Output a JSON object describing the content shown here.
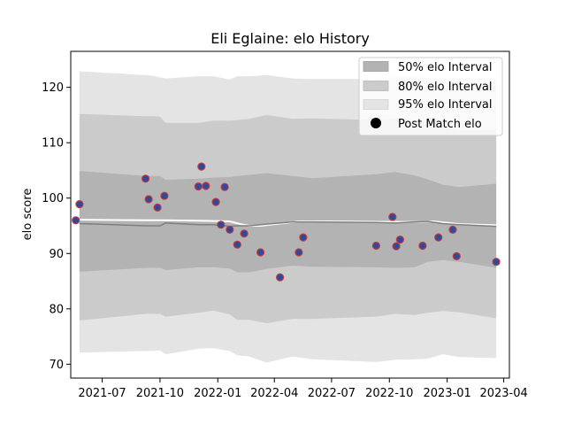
{
  "chart_data": {
    "type": "line",
    "title": "Eli Eglaine: elo History",
    "xlabel": "",
    "ylabel": "elo score",
    "x_axis": {
      "type": "date",
      "range": [
        "2021-05-12",
        "2023-04-10"
      ],
      "ticks": [
        "2021-07-01",
        "2021-10-01",
        "2022-01-01",
        "2022-04-01",
        "2022-07-01",
        "2022-10-01",
        "2023-01-01",
        "2023-04-01"
      ],
      "tick_labels": [
        "2021-07",
        "2021-10",
        "2022-01",
        "2022-04",
        "2022-07",
        "2022-10",
        "2023-01",
        "2023-04"
      ]
    },
    "y_axis": {
      "range": [
        67.5,
        126.5
      ],
      "ticks": [
        70,
        80,
        90,
        100,
        110,
        120
      ],
      "tick_labels": [
        "70",
        "80",
        "90",
        "100",
        "110",
        "120"
      ]
    },
    "grid": false,
    "legend_position": "top-right",
    "legend": [
      {
        "label": "50% elo Interval",
        "color": "#b3b3b3"
      },
      {
        "label": "80% elo Interval",
        "color": "#cbcbcb"
      },
      {
        "label": "95% elo Interval",
        "color": "#e4e4e4"
      },
      {
        "label": "Post Match elo",
        "color": "#000000"
      }
    ],
    "colors": {
      "band50": "#b3b3b3",
      "band80": "#cbcbcb",
      "band95": "#e4e4e4",
      "mean_line": "#7f7f7f",
      "post_line": "#ffffff",
      "point_fill": "#2e4a9e",
      "point_edge": "#c43a3a"
    },
    "mean_series": {
      "x": [
        "2021-05-26",
        "2021-09-08",
        "2021-09-20",
        "2021-10-01",
        "2021-10-10",
        "2021-12-01",
        "2021-12-25",
        "2022-01-20",
        "2022-02-01",
        "2022-02-20",
        "2022-03-20",
        "2022-04-30",
        "2022-06-01",
        "2022-09-10",
        "2022-10-10",
        "2022-11-10",
        "2022-12-01",
        "2022-12-25",
        "2023-01-20",
        "2023-03-20"
      ],
      "y": [
        95.4,
        95.0,
        95.0,
        95.0,
        95.5,
        95.2,
        95.2,
        94.9,
        95.0,
        95.0,
        95.3,
        95.7,
        95.7,
        95.6,
        95.5,
        95.7,
        95.8,
        95.4,
        95.2,
        94.9
      ]
    },
    "post_series": {
      "x": [
        "2021-05-26",
        "2021-09-08",
        "2021-10-10",
        "2021-12-10",
        "2022-01-20",
        "2022-02-06",
        "2022-02-20",
        "2022-03-10",
        "2022-04-10",
        "2022-05-10",
        "2022-06-10",
        "2022-10-01",
        "2022-11-10",
        "2022-12-10",
        "2023-01-20",
        "2023-03-20"
      ],
      "y": [
        96.1,
        96.0,
        96.0,
        95.9,
        95.8,
        95.3,
        95.0,
        95.0,
        95.4,
        95.8,
        95.8,
        95.7,
        95.7,
        95.8,
        95.3,
        95.1
      ]
    },
    "interval_bands": {
      "x": [
        "2021-05-26",
        "2021-09-08",
        "2021-09-20",
        "2021-10-01",
        "2021-10-10",
        "2021-12-01",
        "2021-12-25",
        "2022-01-20",
        "2022-02-01",
        "2022-02-20",
        "2022-03-20",
        "2022-04-30",
        "2022-06-01",
        "2022-09-10",
        "2022-10-10",
        "2022-11-10",
        "2022-12-01",
        "2022-12-25",
        "2023-01-20",
        "2023-03-20"
      ],
      "p50_lower": [
        86.7,
        87.4,
        87.4,
        87.4,
        87.0,
        87.5,
        87.5,
        87.3,
        86.6,
        86.6,
        87.2,
        87.8,
        87.6,
        87.5,
        87.4,
        87.5,
        88.5,
        88.8,
        88.5,
        87.4
      ],
      "p50_upper": [
        104.9,
        104.0,
        104.0,
        104.0,
        103.3,
        103.5,
        103.7,
        103.8,
        104.0,
        104.2,
        104.5,
        104.0,
        103.6,
        104.3,
        104.7,
        104.1,
        103.4,
        102.4,
        102.0,
        102.6
      ],
      "p80_lower": [
        77.9,
        79.1,
        79.1,
        79.1,
        78.6,
        79.3,
        79.7,
        79.0,
        78.0,
        78.0,
        77.4,
        78.2,
        78.2,
        78.6,
        79.1,
        78.9,
        79.3,
        79.6,
        79.4,
        78.3
      ],
      "p80_upper": [
        115.2,
        114.8,
        114.8,
        114.7,
        113.6,
        113.6,
        114.0,
        114.0,
        114.1,
        114.3,
        115.0,
        114.3,
        114.4,
        114.1,
        114.4,
        114.1,
        113.8,
        112.8,
        112.2,
        112.3
      ],
      "p95_lower": [
        72.1,
        72.4,
        72.4,
        72.5,
        71.8,
        72.8,
        72.9,
        72.4,
        71.6,
        71.4,
        70.3,
        71.4,
        70.9,
        70.4,
        70.8,
        70.9,
        71.0,
        71.8,
        71.3,
        71.1
      ],
      "p95_upper": [
        122.9,
        122.2,
        122.1,
        121.8,
        121.6,
        122.0,
        122.0,
        121.4,
        122.0,
        122.0,
        122.2,
        121.6,
        121.5,
        121.5,
        121.8,
        121.9,
        121.7,
        121.2,
        121.0,
        120.9
      ]
    },
    "match_points": {
      "x": [
        "2021-05-20",
        "2021-05-26",
        "2021-09-08",
        "2021-09-13",
        "2021-09-27",
        "2021-10-08",
        "2021-12-01",
        "2021-12-06",
        "2021-12-13",
        "2021-12-29",
        "2022-01-06",
        "2022-01-12",
        "2022-01-20",
        "2022-02-01",
        "2022-02-12",
        "2022-03-10",
        "2022-04-10",
        "2022-05-10",
        "2022-05-17",
        "2022-09-10",
        "2022-10-06",
        "2022-10-12",
        "2022-10-18",
        "2022-11-23",
        "2022-12-18",
        "2023-01-10",
        "2023-01-16",
        "2023-03-20"
      ],
      "y": [
        96.0,
        98.9,
        103.5,
        99.8,
        98.3,
        100.4,
        102.1,
        105.7,
        102.2,
        99.3,
        95.2,
        102.0,
        94.3,
        91.6,
        93.6,
        90.2,
        85.7,
        90.2,
        92.9,
        91.4,
        96.6,
        91.3,
        92.5,
        91.4,
        92.9,
        94.3,
        89.5,
        88.5
      ]
    }
  }
}
